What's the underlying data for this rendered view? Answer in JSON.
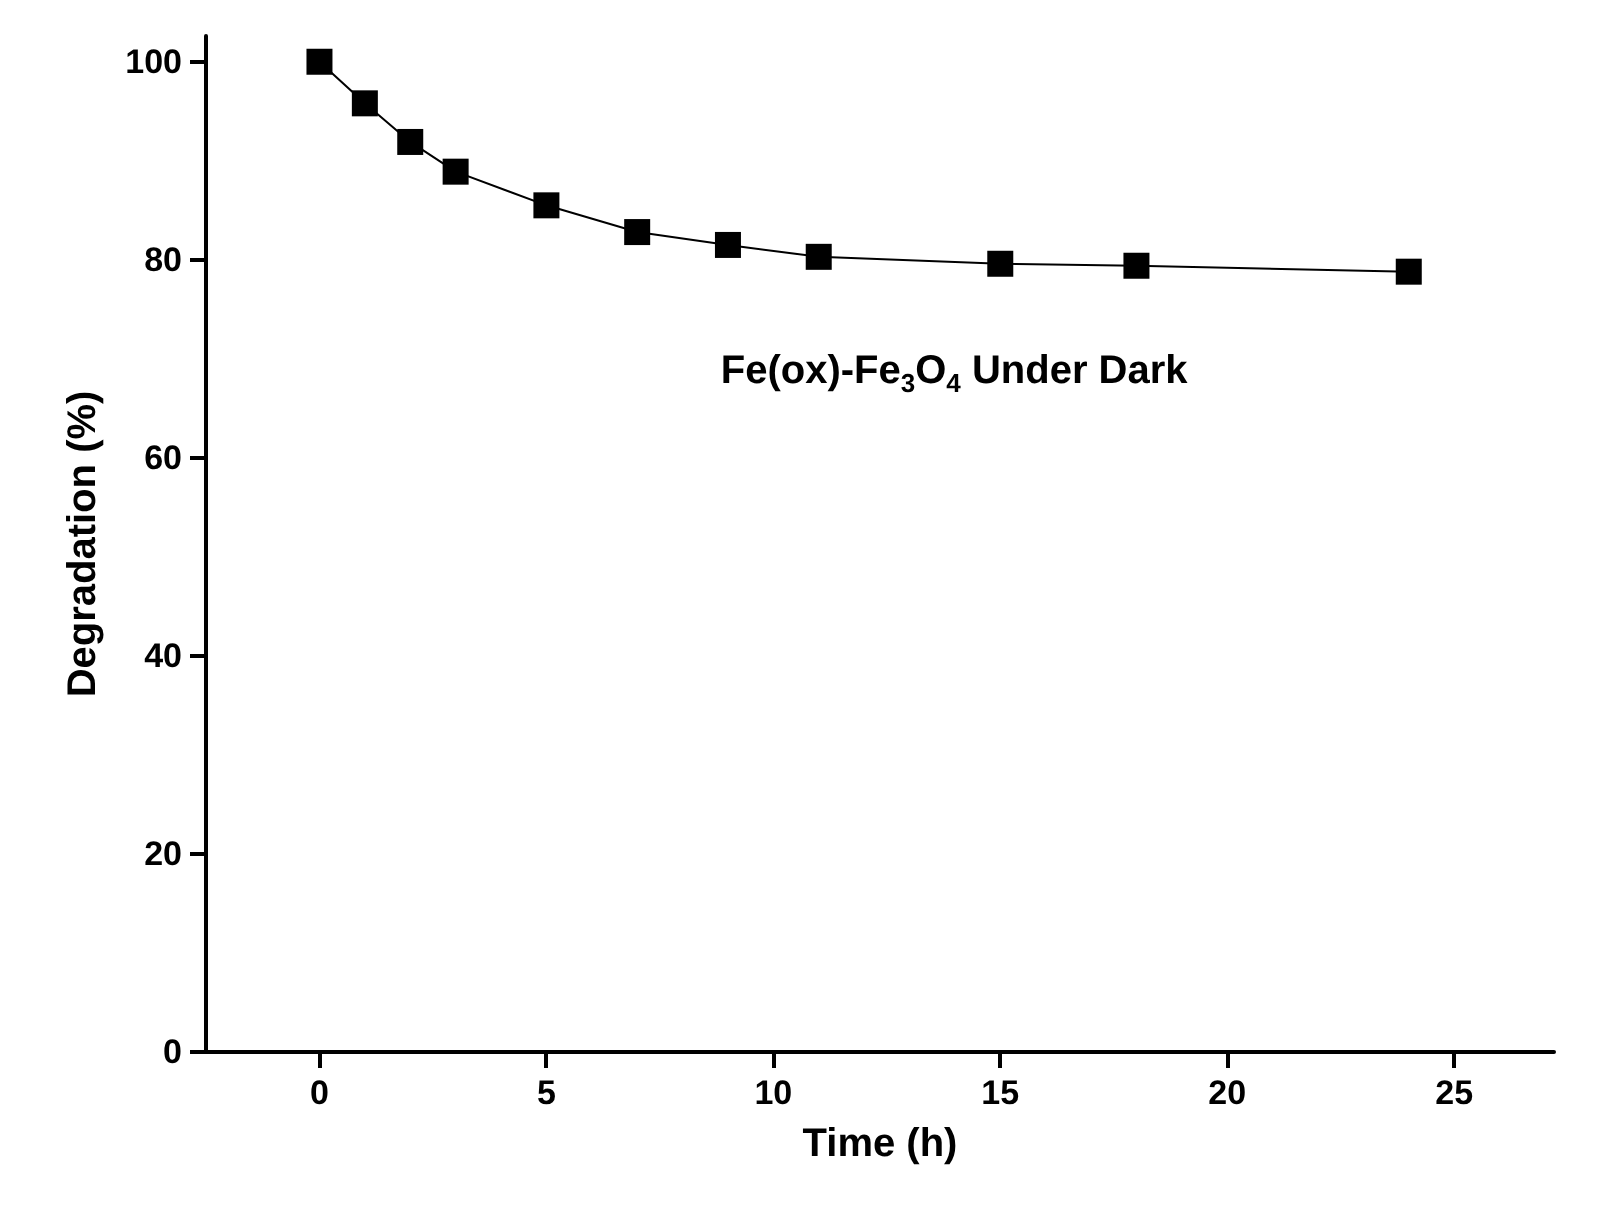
{
  "chart_data": {
    "type": "line",
    "xlabel": "Time (h)",
    "ylabel": "Degradation (%)",
    "x": [
      0,
      1,
      2,
      3,
      5,
      7,
      9,
      11,
      15,
      18,
      24
    ],
    "series": [
      {
        "color": "#000000",
        "values": [
          100,
          95.8,
          91.9,
          88.9,
          85.5,
          82.8,
          81.5,
          80.3,
          79.6,
          79.4,
          78.8
        ]
      }
    ],
    "xlim": [
      -2.5,
      27.2
    ],
    "xticks": [
      0,
      5,
      10,
      15,
      20,
      25
    ],
    "ylim": [
      0,
      102.6
    ],
    "yticks": [
      0,
      20,
      40,
      60,
      80,
      100
    ],
    "marker": "square",
    "line_style": "solid",
    "grid": false,
    "annotations": [
      "Fe(ox)-Fe$_{3}$O$_{4}$ Under Dark"
    ]
  }
}
